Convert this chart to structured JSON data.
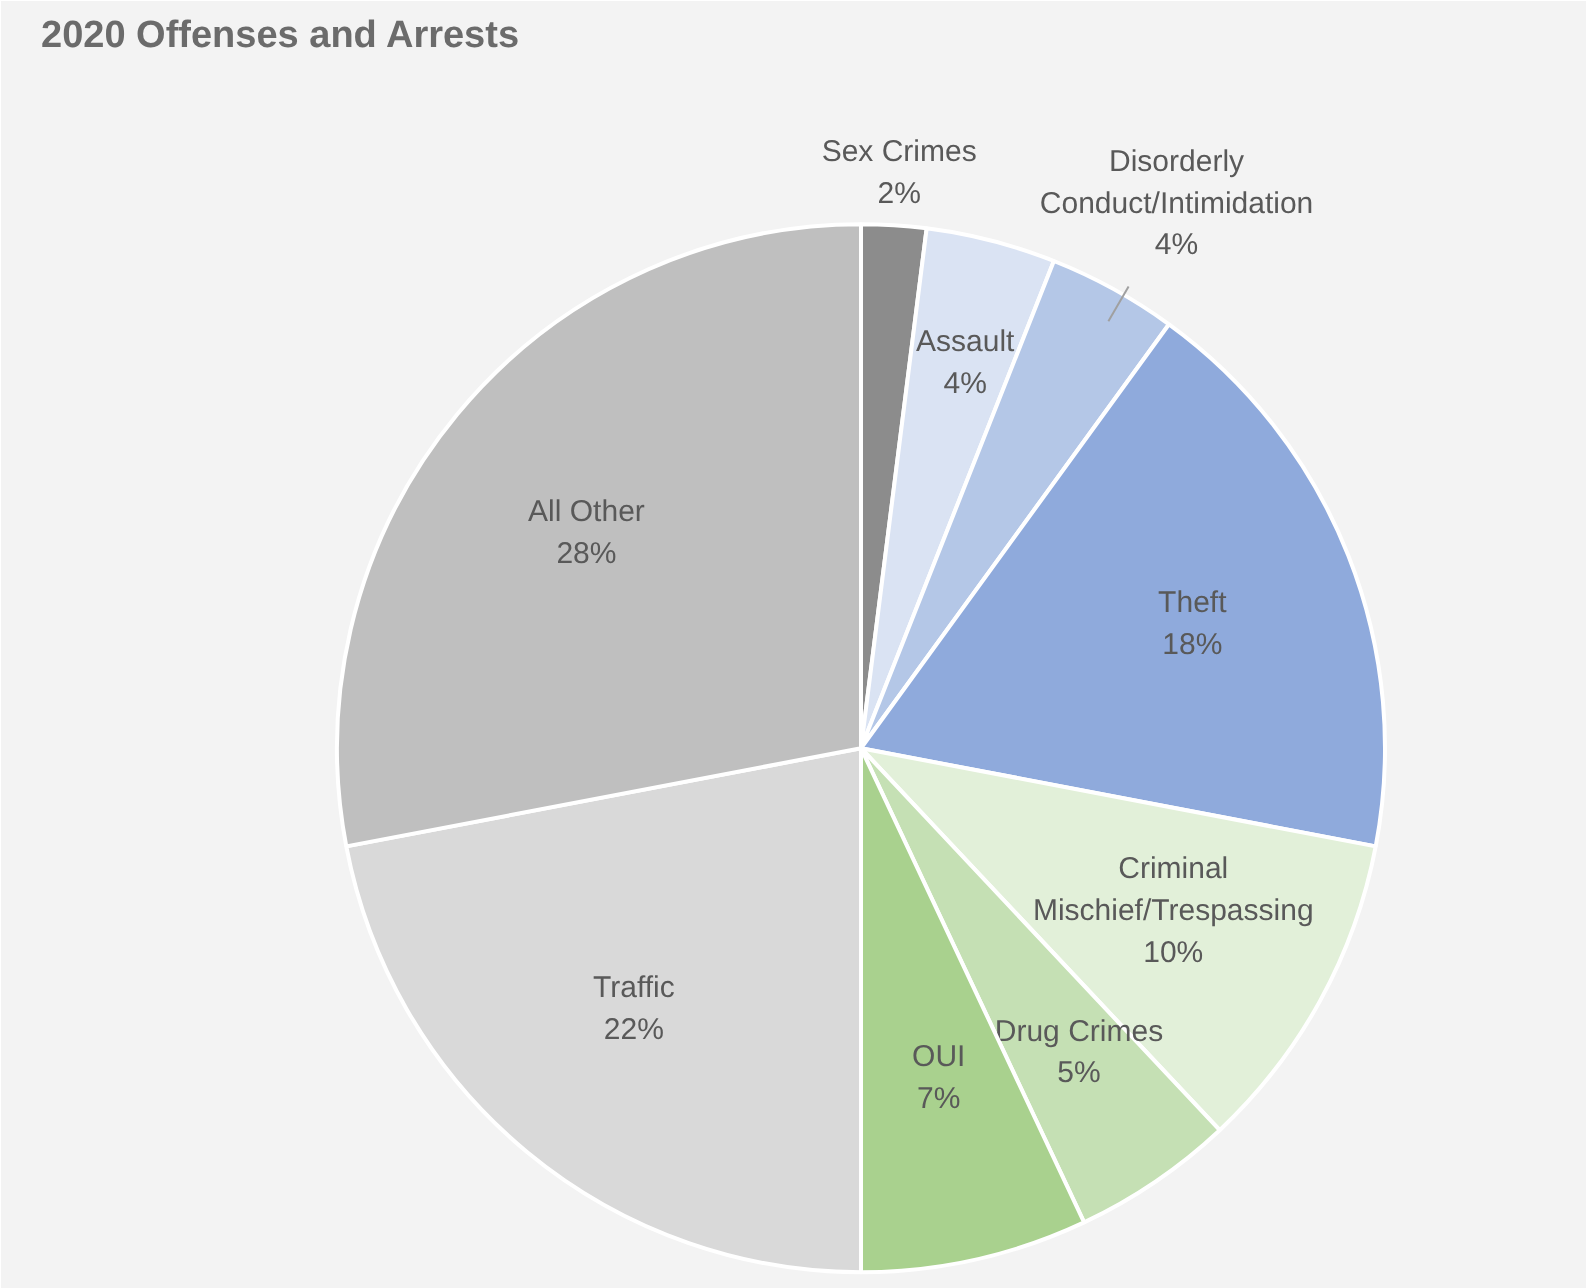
{
  "chart_data": {
    "type": "pie",
    "title": "2020 Offenses and Arrests",
    "categories": [
      "Sex Crimes",
      "Assault",
      "Disorderly Conduct/Intimidation",
      "Theft",
      "Criminal Mischief/Trespassing",
      "Drug Crimes",
      "OUI",
      "Traffic",
      "All Other"
    ],
    "values": [
      2,
      4,
      4,
      18,
      10,
      5,
      7,
      22,
      28
    ],
    "colors": [
      "#8c8c8c",
      "#dae3f3",
      "#b4c7e7",
      "#8faadc",
      "#e2f0d9",
      "#c5e0b4",
      "#a9d18e",
      "#d9d9d9",
      "#bfbfbf"
    ],
    "value_labels": [
      "2%",
      "4%",
      "4%",
      "18%",
      "10%",
      "5%",
      "7%",
      "22%",
      "28%"
    ]
  }
}
